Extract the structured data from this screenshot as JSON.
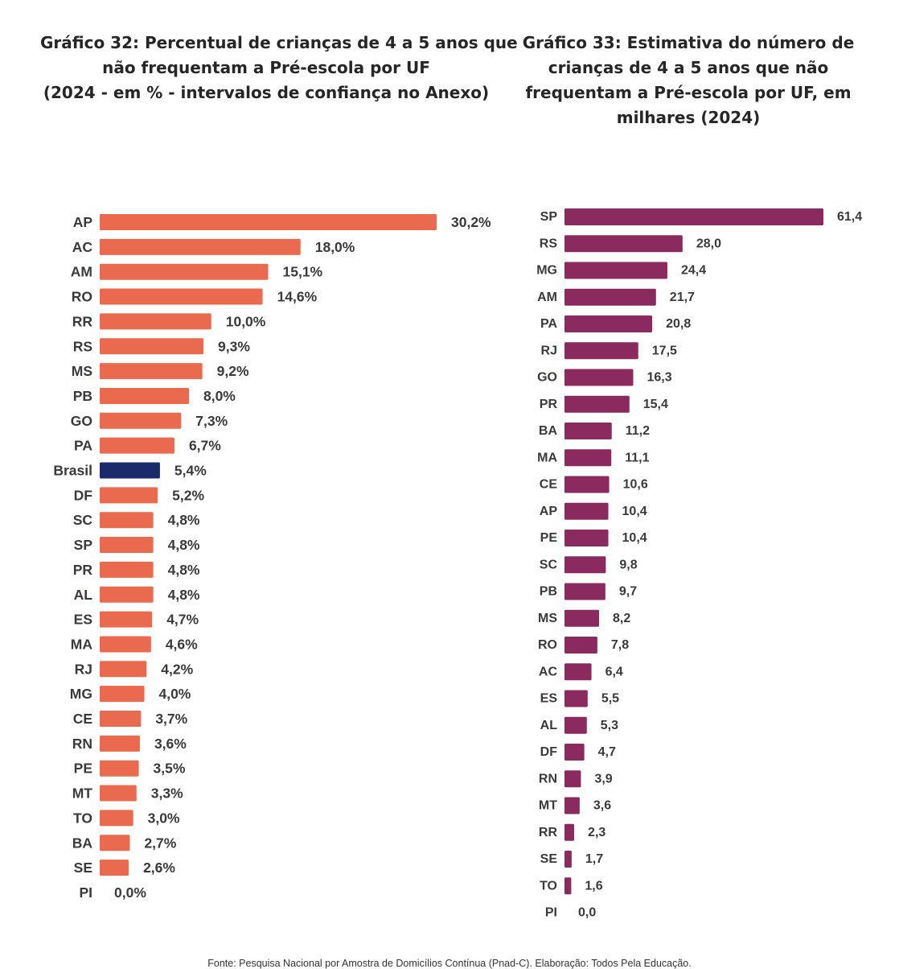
{
  "chart_data": [
    {
      "type": "bar",
      "orientation": "horizontal",
      "title": "Gráfico 32: Percentual de crianças de 4 a 5 anos que não frequentam a Pré-escola por UF (2024 - em %  - intervalos de confiança no Anexo)",
      "title_lines": [
        "Gráfico 32: Percentual de crianças de 4 a 5 anos que",
        "não frequentam a Pré-escola por UF",
        "(2024 - em %  - intervalos de confiança no Anexo)"
      ],
      "categories": [
        "AP",
        "AC",
        "AM",
        "RO",
        "RR",
        "RS",
        "MS",
        "PB",
        "GO",
        "PA",
        "Brasil",
        "DF",
        "SC",
        "SP",
        "PR",
        "AL",
        "ES",
        "MA",
        "RJ",
        "MG",
        "CE",
        "RN",
        "PE",
        "MT",
        "TO",
        "BA",
        "SE",
        "PI"
      ],
      "values": [
        30.2,
        18.0,
        15.1,
        14.6,
        10.0,
        9.3,
        9.2,
        8.0,
        7.3,
        6.7,
        5.4,
        5.2,
        4.8,
        4.8,
        4.8,
        4.8,
        4.7,
        4.6,
        4.2,
        4.0,
        3.7,
        3.6,
        3.5,
        3.3,
        3.0,
        2.7,
        2.6,
        0.0
      ],
      "labels": [
        "30,2%",
        "18,0%",
        "15,1%",
        "14,6%",
        "10,0%",
        "9,3%",
        "9,2%",
        "8,0%",
        "7,3%",
        "6,7%",
        "5,4%",
        "5,2%",
        "4,8%",
        "4,8%",
        "4,8%",
        "4,8%",
        "4,7%",
        "4,6%",
        "4,2%",
        "4,0%",
        "3,7%",
        "3,6%",
        "3,5%",
        "3,3%",
        "3,0%",
        "2,7%",
        "2,6%",
        "0,0%"
      ],
      "highlight": "Brasil",
      "xlim": [
        0,
        30.2
      ],
      "color": "#E96A4E",
      "highlight_color": "#1B2A6B",
      "grid": false
    },
    {
      "type": "bar",
      "orientation": "horizontal",
      "title": "Gráfico 33: Estimativa do número de crianças de 4 a 5 anos que não frequentam a Pré-escola por UF, em milhares (2024)",
      "title_lines": [
        "Gráfico 33: Estimativa do número de",
        "crianças de 4 a 5 anos que não",
        "frequentam a Pré-escola por UF, em",
        "milhares (2024)"
      ],
      "categories": [
        "SP",
        "RS",
        "MG",
        "AM",
        "PA",
        "RJ",
        "GO",
        "PR",
        "BA",
        "MA",
        "CE",
        "AP",
        "PE",
        "SC",
        "PB",
        "MS",
        "RO",
        "AC",
        "ES",
        "AL",
        "DF",
        "RN",
        "MT",
        "RR",
        "SE",
        "TO",
        "PI"
      ],
      "values": [
        61.4,
        28.0,
        24.4,
        21.7,
        20.8,
        17.5,
        16.3,
        15.4,
        11.2,
        11.1,
        10.6,
        10.4,
        10.4,
        9.8,
        9.7,
        8.2,
        7.8,
        6.4,
        5.5,
        5.3,
        4.7,
        3.9,
        3.6,
        2.3,
        1.7,
        1.6,
        0.0
      ],
      "labels": [
        "61,4",
        "28,0",
        "24,4",
        "21,7",
        "20,8",
        "17,5",
        "16,3",
        "15,4",
        "11,2",
        "11,1",
        "10,6",
        "10,4",
        "10,4",
        "9,8",
        "9,7",
        "8,2",
        "7,8",
        "6,4",
        "5,5",
        "5,3",
        "4,7",
        "3,9",
        "3,6",
        "2,3",
        "1,7",
        "1,6",
        "0,0"
      ],
      "xlim": [
        0,
        61.4
      ],
      "color": "#8B2A5E",
      "grid": false
    }
  ],
  "footer": {
    "source": "Fonte: Pesquisa Nacional por Amostra de Domicílios Contínua (Pnad-C). Elaboração: Todos Pela Educação."
  }
}
